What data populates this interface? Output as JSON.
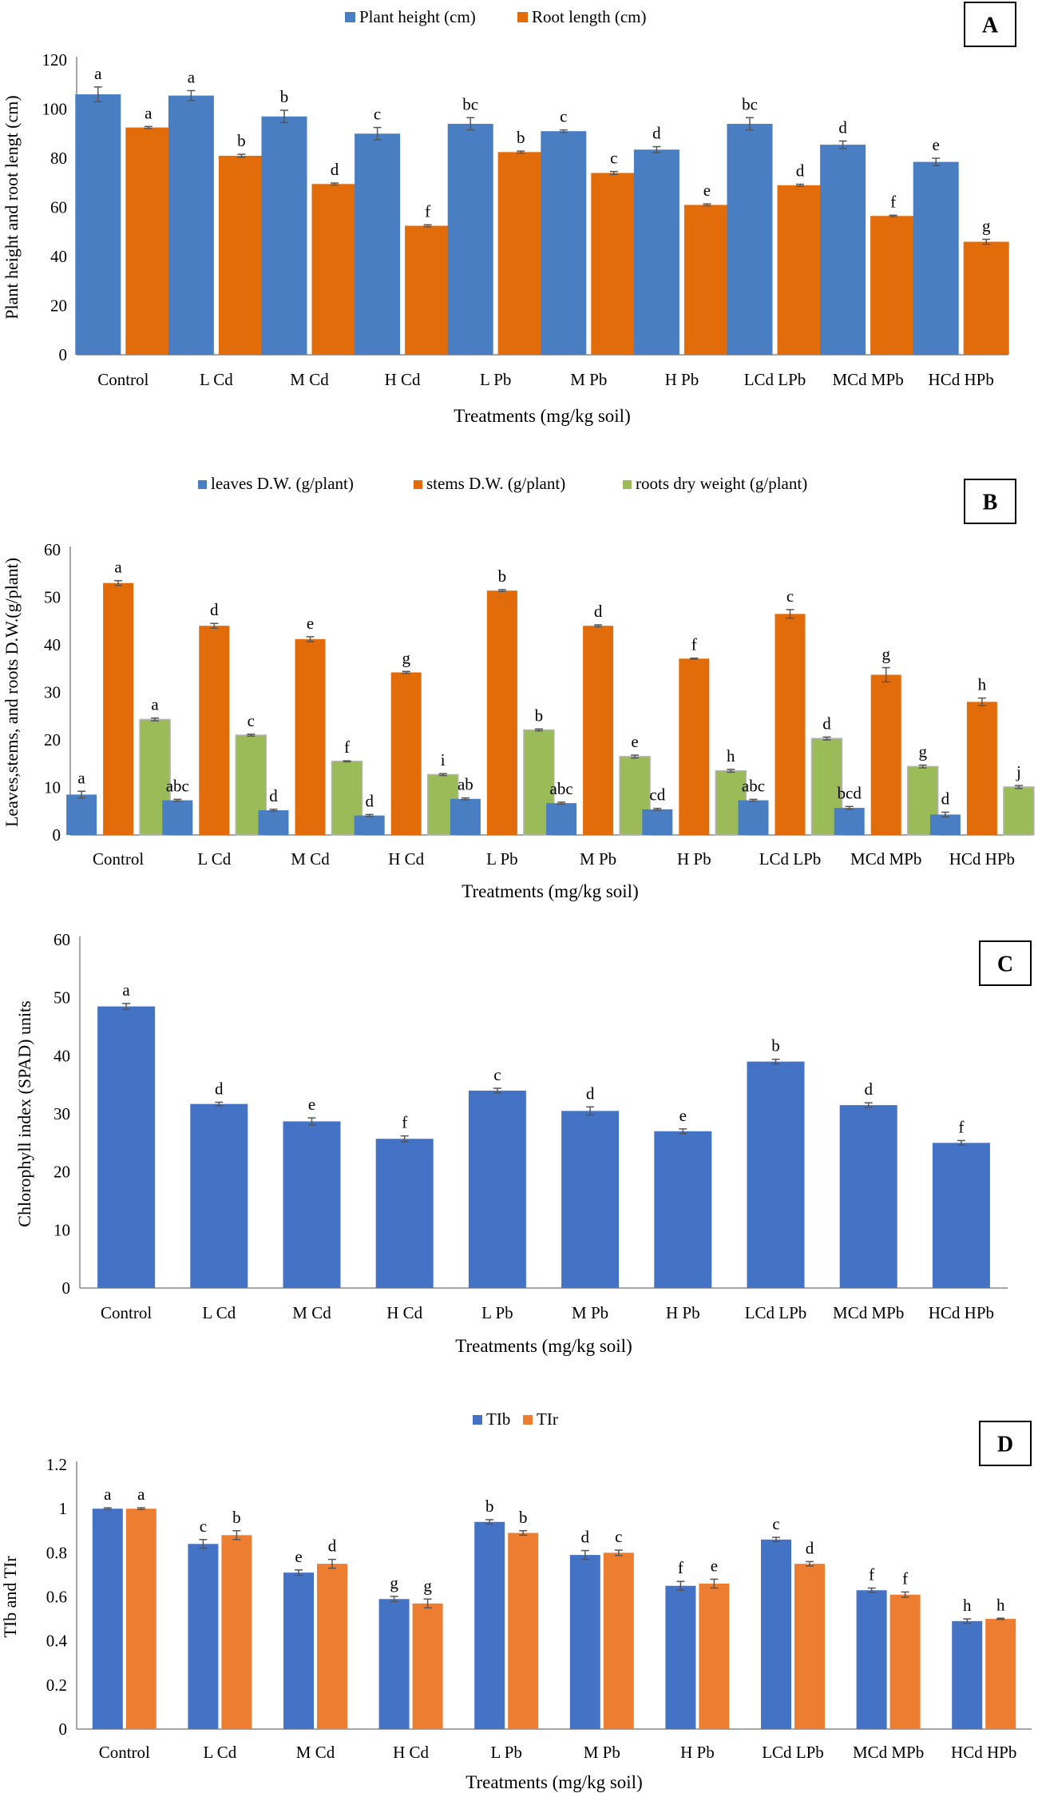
{
  "chart_data": [
    {
      "type": "bar",
      "panel_label": "A",
      "categories": [
        "Control",
        "L Cd",
        "M Cd",
        "H Cd",
        "L Pb",
        "M Pb",
        "H Pb",
        "LCd LPb",
        "MCd MPb",
        "HCd HPb"
      ],
      "series": [
        {
          "name": "Plant height (cm)",
          "color": "#4A7EC2",
          "values": [
            106,
            105.5,
            97,
            90,
            94,
            91,
            83.5,
            94,
            85.5,
            78.5
          ],
          "errors": [
            3,
            2,
            2.5,
            2.5,
            2.5,
            0.5,
            1.2,
            2.5,
            1.5,
            1.5
          ],
          "letters": [
            "a",
            "a",
            "b",
            "c",
            "bc",
            "c",
            "d",
            "bc",
            "d",
            "e"
          ]
        },
        {
          "name": "Root length (cm)",
          "color": "#E36C0A",
          "values": [
            92.5,
            81,
            69.5,
            52.5,
            82.5,
            74,
            61,
            69,
            56.5,
            46
          ],
          "errors": [
            0.4,
            0.6,
            0.4,
            0.4,
            0.4,
            0.6,
            0.4,
            0.4,
            0.3,
            1
          ],
          "letters": [
            "a",
            "b",
            "d",
            "f",
            "b",
            "c",
            "e",
            "d",
            "f",
            "g"
          ]
        }
      ],
      "ylabel": "Plant height and root lengt (cm)",
      "xlabel": "Treatments (mg/kg soil)",
      "ylim": [
        0,
        120
      ],
      "yticks": [
        0,
        20,
        40,
        60,
        80,
        100,
        120
      ],
      "legend_position": "top-center"
    },
    {
      "type": "bar",
      "panel_label": "B",
      "categories": [
        "Control",
        "L Cd",
        "M Cd",
        "H Cd",
        "L Pb",
        "M Pb",
        "H Pb",
        "LCd LPb",
        "MCd MPb",
        "HCd HPb"
      ],
      "series": [
        {
          "name": "leaves D.W. (g/plant)",
          "color": "#4A7EC2",
          "values": [
            8.5,
            7.3,
            5.2,
            4.1,
            7.6,
            6.7,
            5.4,
            7.3,
            5.7,
            4.3
          ],
          "errors": [
            0.7,
            0.2,
            0.2,
            0.2,
            0.2,
            0.2,
            0.2,
            0.2,
            0.3,
            0.5
          ],
          "letters": [
            "a",
            "abc",
            "d",
            "d",
            "ab",
            "abc",
            "cd",
            "abc",
            "bcd",
            "d"
          ]
        },
        {
          "name": "stems D.W. (g/plant)",
          "color": "#E36C0A",
          "values": [
            53,
            44,
            41.2,
            34.2,
            51.4,
            44,
            37.1,
            46.5,
            33.7,
            28
          ],
          "errors": [
            0.5,
            0.5,
            0.5,
            0.2,
            0.2,
            0.2,
            0.1,
            0.9,
            1.5,
            0.8
          ],
          "letters": [
            "a",
            "d",
            "e",
            "g",
            "b",
            "d",
            "f",
            "c",
            "g",
            "h"
          ]
        },
        {
          "name": "roots dry weight (g/plant)",
          "color": "#9BBB59",
          "values": [
            24.3,
            21,
            15.5,
            12.7,
            22.1,
            16.5,
            13.5,
            20.3,
            14.4,
            10.1
          ],
          "errors": [
            0.3,
            0.2,
            0.1,
            0.2,
            0.2,
            0.3,
            0.3,
            0.3,
            0.3,
            0.3
          ],
          "letters": [
            "a",
            "c",
            "f",
            "i",
            "b",
            "e",
            "h",
            "d",
            "g",
            "j"
          ]
        }
      ],
      "ylabel": "Leaves,stems, and roots D.W.(g/plant)",
      "xlabel": "Treatments (mg/kg soil)",
      "ylim": [
        0,
        60
      ],
      "yticks": [
        0,
        10,
        20,
        30,
        40,
        50,
        60
      ],
      "legend_position": "top-center"
    },
    {
      "type": "bar",
      "panel_label": "C",
      "categories": [
        "Control",
        "L Cd",
        "M Cd",
        "H Cd",
        "L Pb",
        "M Pb",
        "H Pb",
        "LCd LPb",
        "MCd MPb",
        "HCd HPb"
      ],
      "series": [
        {
          "name": "Chlorophyll index (SPAD) units",
          "color": "#4472C4",
          "values": [
            48.5,
            31.7,
            28.7,
            25.7,
            34,
            30.5,
            27,
            39,
            31.5,
            25
          ],
          "errors": [
            0.5,
            0.3,
            0.6,
            0.5,
            0.4,
            0.7,
            0.4,
            0.4,
            0.4,
            0.4
          ],
          "letters": [
            "a",
            "d",
            "e",
            "f",
            "c",
            "d",
            "e",
            "b",
            "d",
            "f"
          ]
        }
      ],
      "ylabel": "Chlorophyll index (SPAD) units",
      "xlabel": "Treatments (mg/kg soil)",
      "ylim": [
        0,
        60
      ],
      "yticks": [
        0,
        10,
        20,
        30,
        40,
        50,
        60
      ],
      "legend_position": "none"
    },
    {
      "type": "bar",
      "panel_label": "D",
      "categories": [
        "Control",
        "L Cd",
        "M Cd",
        "H Cd",
        "L Pb",
        "M Pb",
        "H Pb",
        "LCd LPb",
        "MCd MPb",
        "HCd HPb"
      ],
      "series": [
        {
          "name": "TIb",
          "color": "#4472C4",
          "values": [
            1,
            0.84,
            0.71,
            0.59,
            0.94,
            0.79,
            0.65,
            0.86,
            0.63,
            0.49
          ],
          "errors": [
            0.004,
            0.02,
            0.012,
            0.012,
            0.01,
            0.02,
            0.02,
            0.01,
            0.01,
            0.01
          ],
          "letters": [
            "a",
            "c",
            "e",
            "g",
            "b",
            "d",
            "f",
            "c",
            "f",
            "h"
          ]
        },
        {
          "name": "TIr",
          "color": "#ED7D31",
          "values": [
            1,
            0.88,
            0.75,
            0.57,
            0.89,
            0.8,
            0.66,
            0.75,
            0.61,
            0.5
          ],
          "errors": [
            0.004,
            0.02,
            0.02,
            0.02,
            0.01,
            0.012,
            0.02,
            0.01,
            0.012,
            0.003
          ],
          "letters": [
            "a",
            "b",
            "d",
            "g",
            "b",
            "c",
            "e",
            "d",
            "f",
            "h"
          ]
        }
      ],
      "ylabel": "TIb and TIr",
      "xlabel": "Treatments (mg/kg soil)",
      "ylim": [
        0,
        1.2
      ],
      "yticks": [
        "0",
        "0.2",
        "0.4",
        "0.6",
        "0.8",
        "1",
        "1.2"
      ],
      "legend_position": "top-center"
    }
  ]
}
